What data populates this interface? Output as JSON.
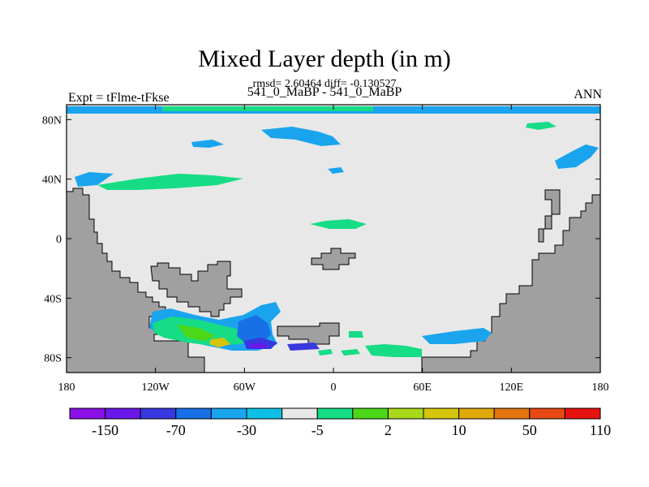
{
  "title": "Mixed Layer depth (in m)",
  "stats": "rmsd= 2.60464 diff= -0.130527",
  "subtitle": "541_0_MaBP - 541_0_MaBP",
  "experiment": "Expt = tFlme-tFkse",
  "season": "ANN",
  "y_axis": {
    "ticks": [
      {
        "label": "80N",
        "lat": 80
      },
      {
        "label": "40N",
        "lat": 40
      },
      {
        "label": "0",
        "lat": 0
      },
      {
        "label": "40S",
        "lat": -40
      },
      {
        "label": "80S",
        "lat": -80
      }
    ],
    "range": [
      -90,
      90
    ]
  },
  "x_axis": {
    "ticks": [
      {
        "label": "180",
        "lon": -180
      },
      {
        "label": "120W",
        "lon": -120
      },
      {
        "label": "60W",
        "lon": -60
      },
      {
        "label": "0",
        "lon": 0
      },
      {
        "label": "60E",
        "lon": 60
      },
      {
        "label": "120E",
        "lon": 120
      },
      {
        "label": "180",
        "lon": 180
      }
    ],
    "range": [
      -180,
      180
    ]
  },
  "colorbar": {
    "colors": [
      "#8a10e6",
      "#6a18ea",
      "#3838e0",
      "#1870e6",
      "#1aa4ee",
      "#0fc0e6",
      "#e8e8e8",
      "#16dc86",
      "#4cd818",
      "#a8d81a",
      "#d4c40c",
      "#e0a808",
      "#e47410",
      "#e64a12",
      "#e61410"
    ],
    "labels": [
      {
        "text": "-150",
        "index": 1
      },
      {
        "text": "-70",
        "index": 3
      },
      {
        "text": "-30",
        "index": 5
      },
      {
        "text": "-5",
        "index": 7
      },
      {
        "text": "2",
        "index": 9
      },
      {
        "text": "10",
        "index": 11
      },
      {
        "text": "50",
        "index": 13
      },
      {
        "text": "110",
        "index": 15
      }
    ]
  },
  "colors": {
    "land": "#a0a0a0",
    "ocean": "#e8e8e8",
    "land_edge": "#000000"
  }
}
